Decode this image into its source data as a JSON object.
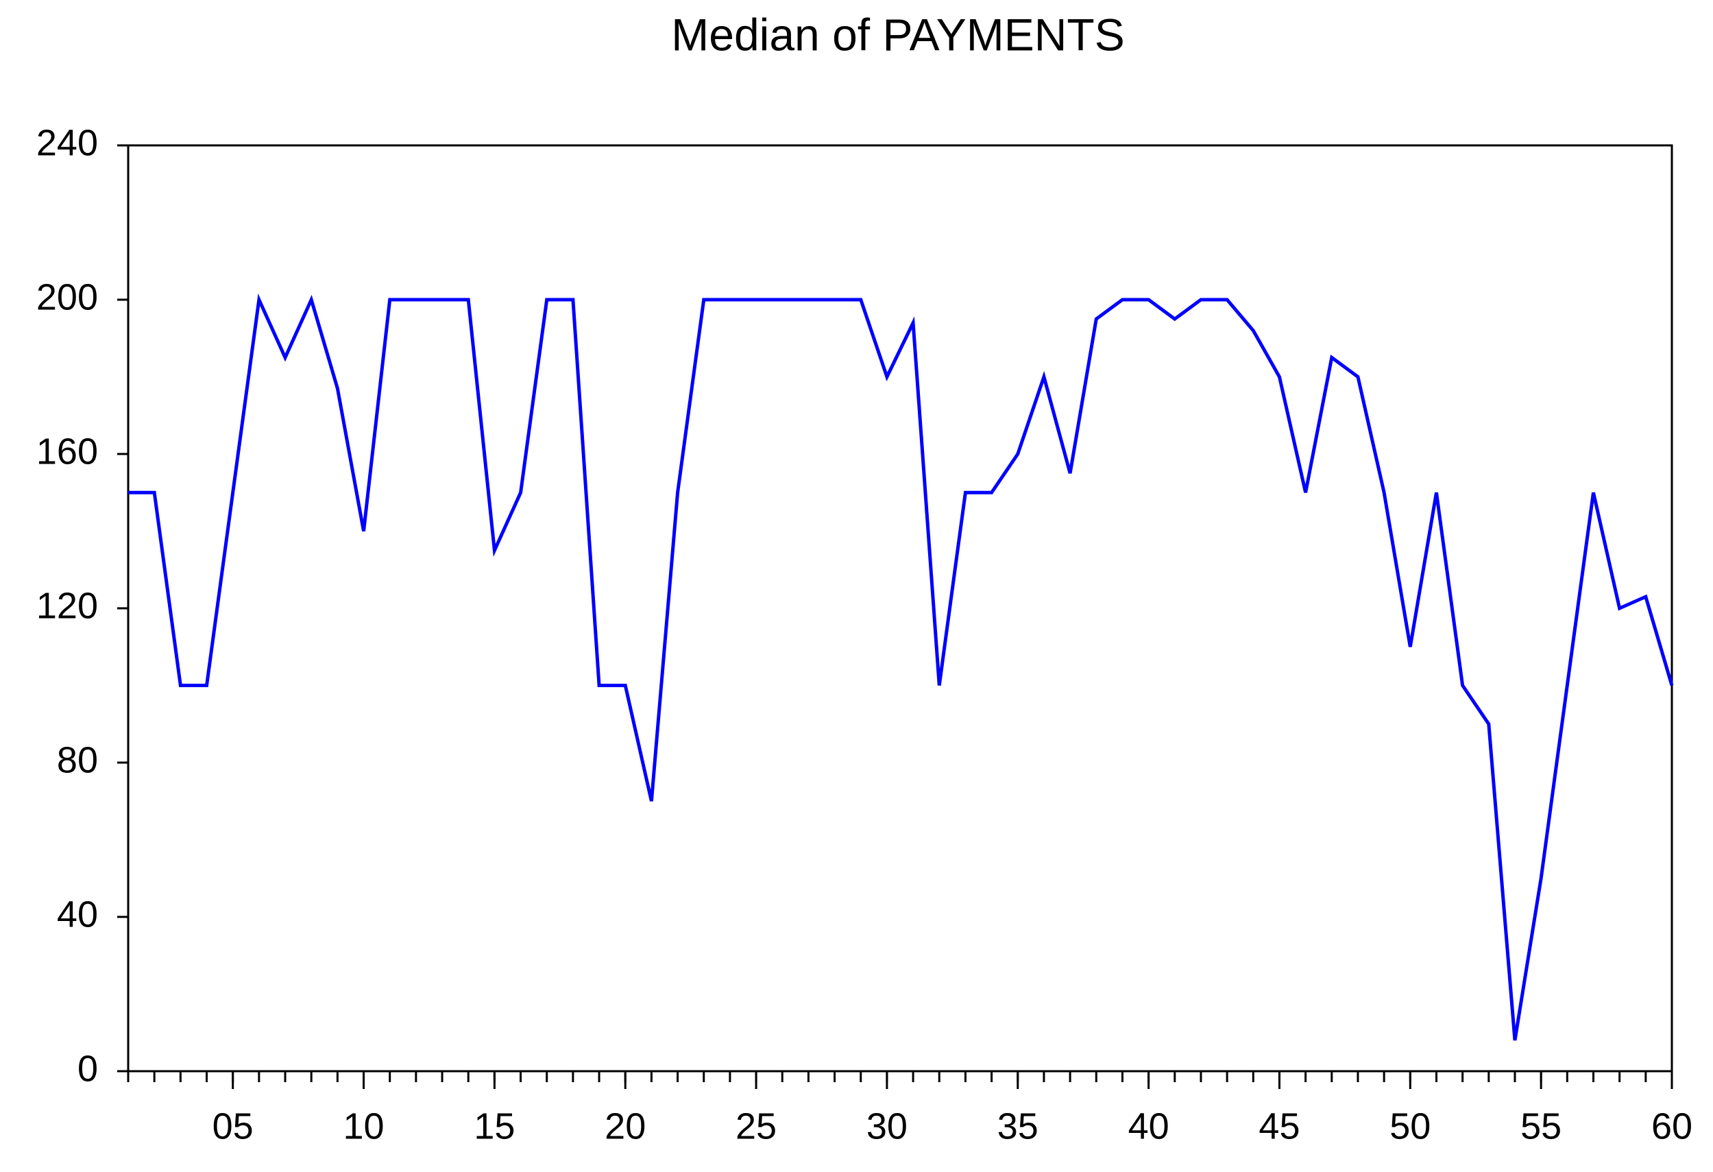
{
  "chart_data": {
    "type": "line",
    "title": "Median of PAYMENTS",
    "x": [
      1,
      2,
      3,
      4,
      5,
      6,
      7,
      8,
      9,
      10,
      11,
      12,
      13,
      14,
      15,
      16,
      17,
      18,
      19,
      20,
      21,
      22,
      23,
      24,
      25,
      26,
      27,
      28,
      29,
      30,
      31,
      32,
      33,
      34,
      35,
      36,
      37,
      38,
      39,
      40,
      41,
      42,
      43,
      44,
      45,
      46,
      47,
      48,
      49,
      50,
      51,
      52,
      53,
      54,
      55,
      56,
      57,
      58,
      59,
      60
    ],
    "values": [
      150,
      150,
      100,
      100,
      150,
      200,
      185,
      200,
      177,
      140,
      200,
      200,
      200,
      200,
      135,
      150,
      200,
      200,
      100,
      100,
      70,
      150,
      200,
      200,
      200,
      200,
      200,
      200,
      200,
      180,
      194,
      100,
      150,
      150,
      160,
      180,
      155,
      195,
      200,
      200,
      195,
      200,
      200,
      192,
      180,
      150,
      185,
      180,
      150,
      110,
      150,
      100,
      90,
      8,
      50,
      100,
      150,
      120,
      123,
      100
    ],
    "color": "#0000ff",
    "xlim": [
      1,
      60
    ],
    "xticks": [
      {
        "value": 5,
        "label": "05"
      },
      10,
      15,
      20,
      25,
      30,
      35,
      40,
      45,
      50,
      55,
      60
    ],
    "ylim": [
      0,
      240
    ],
    "yticks": [
      0,
      40,
      80,
      120,
      160,
      200,
      240
    ],
    "grid": false
  }
}
